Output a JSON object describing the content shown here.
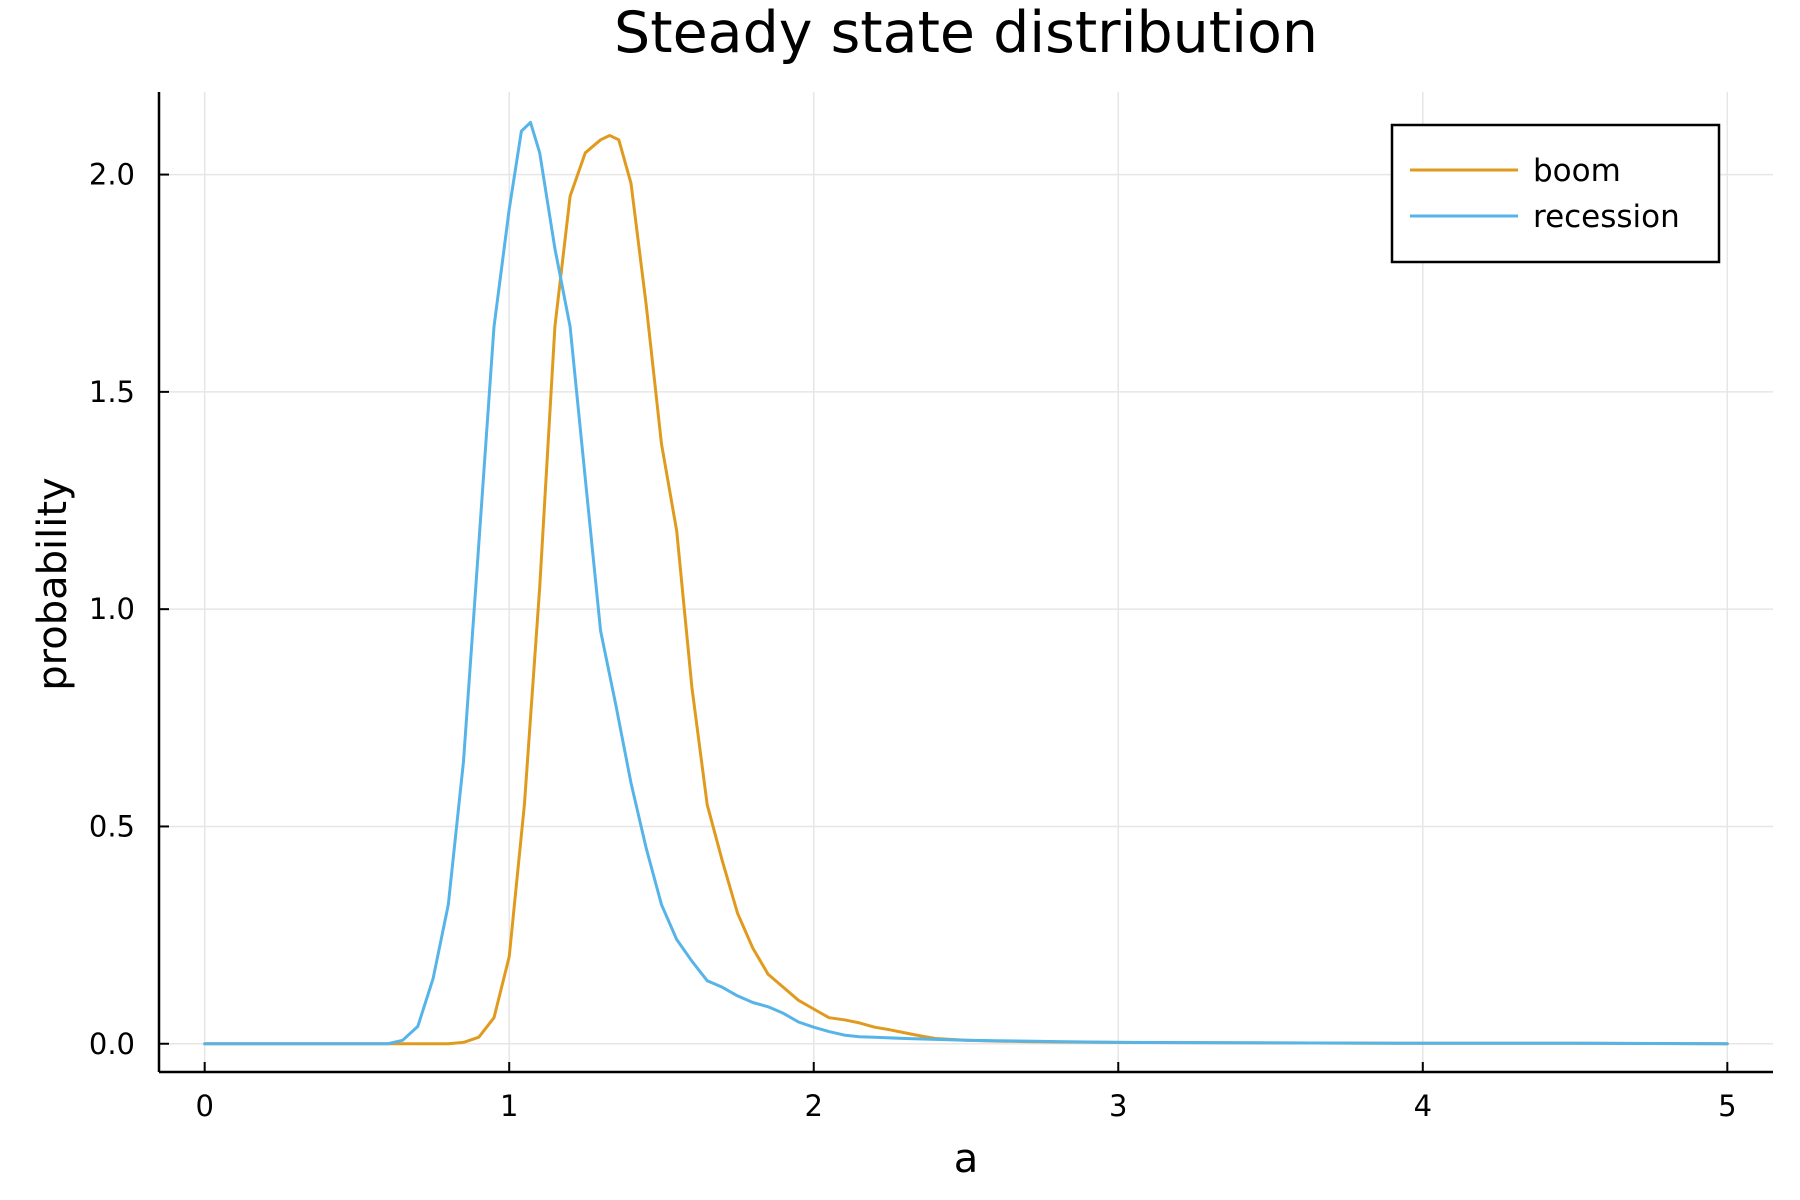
{
  "chart_data": {
    "type": "line",
    "title": "Steady state distribution",
    "xlabel": "a",
    "ylabel": "probability",
    "xlim": [
      -0.15,
      5.15
    ],
    "ylim": [
      -0.065,
      2.19
    ],
    "xticks": [
      0,
      1,
      2,
      3,
      4,
      5
    ],
    "xtick_labels": [
      "0",
      "1",
      "2",
      "3",
      "4",
      "5"
    ],
    "yticks": [
      0.0,
      0.5,
      1.0,
      1.5,
      2.0
    ],
    "ytick_labels": [
      "0.0",
      "0.5",
      "1.0",
      "1.5",
      "2.0"
    ],
    "grid": true,
    "legend_position": "top-right",
    "series": [
      {
        "name": "boom",
        "color": "#e09b1f",
        "x": [
          0.0,
          0.5,
          0.8,
          0.85,
          0.9,
          0.95,
          1.0,
          1.05,
          1.1,
          1.15,
          1.2,
          1.25,
          1.3,
          1.33,
          1.36,
          1.4,
          1.45,
          1.5,
          1.55,
          1.6,
          1.65,
          1.7,
          1.75,
          1.8,
          1.85,
          1.9,
          1.95,
          2.0,
          2.05,
          2.1,
          2.15,
          2.2,
          2.25,
          2.3,
          2.35,
          2.4,
          2.5,
          2.6,
          2.7,
          2.8,
          3.0,
          3.5,
          4.0,
          4.5,
          5.0
        ],
        "y": [
          0.0,
          0.0,
          0.0,
          0.003,
          0.015,
          0.06,
          0.2,
          0.55,
          1.05,
          1.65,
          1.95,
          2.05,
          2.08,
          2.09,
          2.08,
          1.98,
          1.7,
          1.38,
          1.18,
          0.82,
          0.55,
          0.42,
          0.3,
          0.22,
          0.16,
          0.13,
          0.1,
          0.08,
          0.06,
          0.055,
          0.048,
          0.038,
          0.032,
          0.025,
          0.018,
          0.012,
          0.008,
          0.006,
          0.005,
          0.004,
          0.003,
          0.002,
          0.001,
          0.001,
          0.0
        ]
      },
      {
        "name": "recession",
        "color": "#56b4e9",
        "x": [
          0.0,
          0.6,
          0.65,
          0.7,
          0.75,
          0.8,
          0.85,
          0.9,
          0.95,
          1.0,
          1.04,
          1.07,
          1.1,
          1.15,
          1.2,
          1.25,
          1.3,
          1.35,
          1.4,
          1.45,
          1.5,
          1.55,
          1.6,
          1.65,
          1.7,
          1.75,
          1.8,
          1.85,
          1.9,
          1.95,
          2.0,
          2.05,
          2.1,
          2.15,
          2.2,
          2.3,
          2.4,
          2.5,
          2.6,
          2.7,
          2.8,
          3.0,
          3.5,
          4.0,
          4.5,
          5.0
        ],
        "y": [
          0.0,
          0.0,
          0.008,
          0.04,
          0.15,
          0.32,
          0.65,
          1.15,
          1.65,
          1.92,
          2.1,
          2.12,
          2.05,
          1.83,
          1.65,
          1.3,
          0.95,
          0.78,
          0.6,
          0.45,
          0.32,
          0.24,
          0.19,
          0.145,
          0.13,
          0.11,
          0.095,
          0.085,
          0.07,
          0.05,
          0.038,
          0.028,
          0.02,
          0.016,
          0.015,
          0.012,
          0.01,
          0.008,
          0.007,
          0.006,
          0.005,
          0.003,
          0.002,
          0.001,
          0.001,
          0.0
        ]
      }
    ]
  }
}
